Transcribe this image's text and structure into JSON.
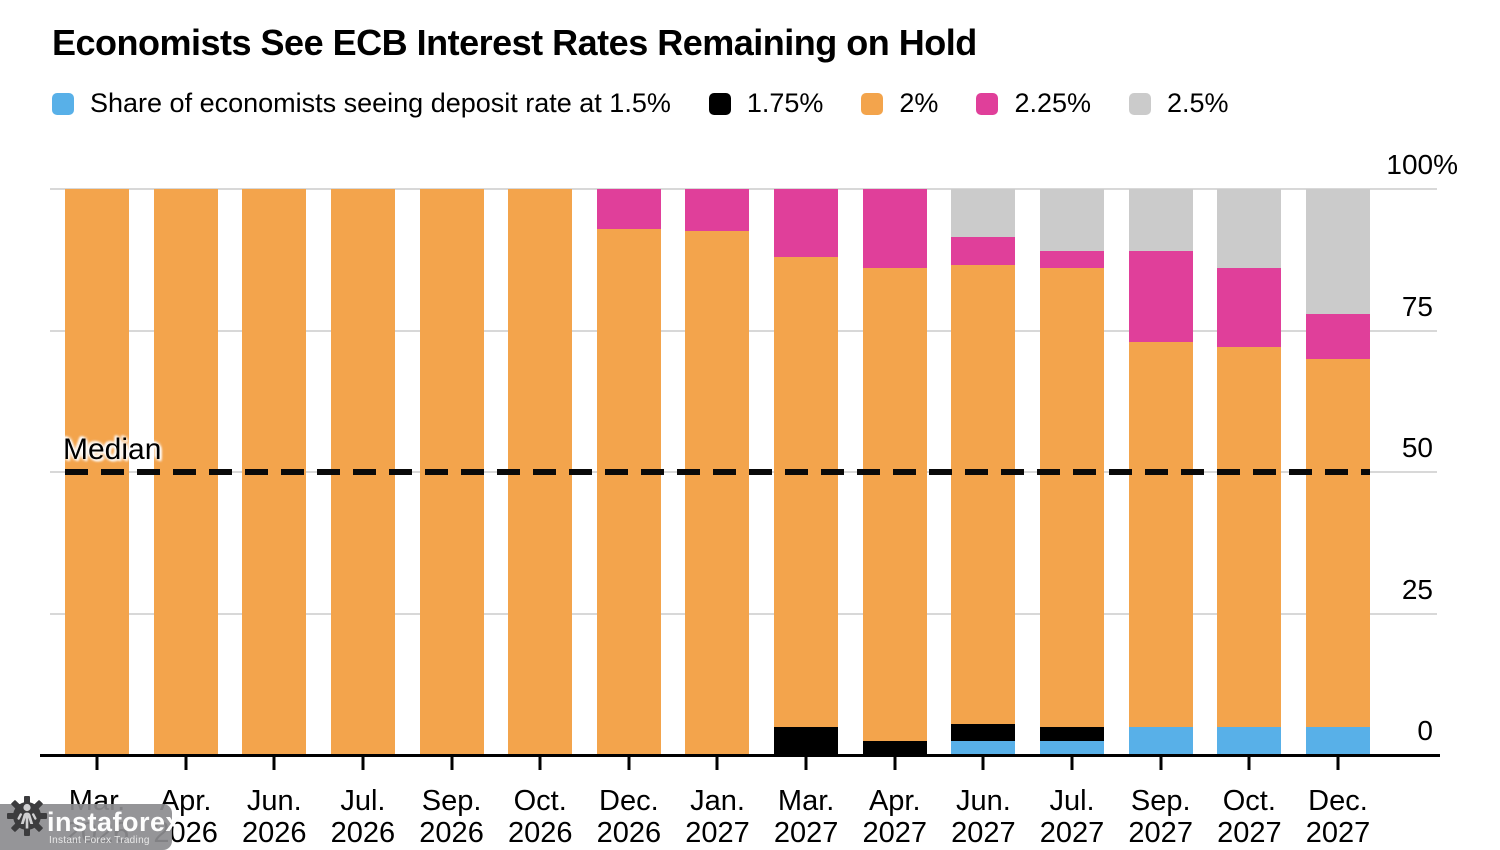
{
  "title": "Economists See ECB Interest Rates Remaining on Hold",
  "legend": {
    "items": [
      {
        "label": "Share of economists seeing deposit rate at 1.5%",
        "color": "#58B0E8"
      },
      {
        "label": "1.75%",
        "color": "#000000"
      },
      {
        "label": "2%",
        "color": "#F3A44C"
      },
      {
        "label": "2.25%",
        "color": "#E03F9A"
      },
      {
        "label": "2.5%",
        "color": "#CBCBCB"
      }
    ]
  },
  "median_label": "Median",
  "watermark": {
    "brand": "instaforex",
    "tagline": "Instant Forex Trading"
  },
  "chart_data": {
    "type": "bar",
    "stacked": true,
    "unit": "%",
    "title": "Economists See ECB Interest Rates Remaining on Hold",
    "categories": [
      {
        "month": "Mar.",
        "year": "2026"
      },
      {
        "month": "Apr.",
        "year": "2026"
      },
      {
        "month": "Jun.",
        "year": "2026"
      },
      {
        "month": "Jul.",
        "year": "2026"
      },
      {
        "month": "Sep.",
        "year": "2026"
      },
      {
        "month": "Oct.",
        "year": "2026"
      },
      {
        "month": "Dec.",
        "year": "2026"
      },
      {
        "month": "Jan.",
        "year": "2027"
      },
      {
        "month": "Mar.",
        "year": "2027"
      },
      {
        "month": "Apr.",
        "year": "2027"
      },
      {
        "month": "Jun.",
        "year": "2027"
      },
      {
        "month": "Jul.",
        "year": "2027"
      },
      {
        "month": "Sep.",
        "year": "2027"
      },
      {
        "month": "Oct.",
        "year": "2027"
      },
      {
        "month": "Dec.",
        "year": "2027"
      }
    ],
    "series": [
      {
        "name": "1.5%",
        "color": "#58B0E8",
        "values": [
          0,
          0,
          0,
          0,
          0,
          0,
          0,
          0,
          0,
          0,
          2.5,
          2.5,
          5,
          5,
          5
        ]
      },
      {
        "name": "1.75%",
        "color": "#000000",
        "values": [
          0,
          0,
          0,
          0,
          0,
          0,
          0,
          0,
          5,
          2.5,
          3,
          2.5,
          0,
          0,
          0
        ]
      },
      {
        "name": "2%",
        "color": "#F3A44C",
        "values": [
          100,
          100,
          100,
          100,
          100,
          100,
          93,
          92.5,
          83,
          83.5,
          81,
          81,
          68,
          67,
          65
        ]
      },
      {
        "name": "2.25%",
        "color": "#E03F9A",
        "values": [
          0,
          0,
          0,
          0,
          0,
          0,
          7,
          7.5,
          12,
          14,
          5,
          3,
          16,
          14,
          8
        ]
      },
      {
        "name": "2.5%",
        "color": "#CBCBCB",
        "values": [
          0,
          0,
          0,
          0,
          0,
          0,
          0,
          0,
          0,
          0,
          8.5,
          11,
          11,
          14,
          22
        ]
      }
    ],
    "y_axis": {
      "side": "right",
      "range": [
        0,
        100
      ],
      "tick_values": [
        100,
        75,
        50,
        25,
        0
      ],
      "tick_labels": [
        "100%",
        "75",
        "50",
        "25",
        "0"
      ]
    },
    "median_line": {
      "label": "Median",
      "value": 50,
      "style": "dashed",
      "color": "#000000"
    },
    "legend_position": "top",
    "grid": "horizontal"
  }
}
